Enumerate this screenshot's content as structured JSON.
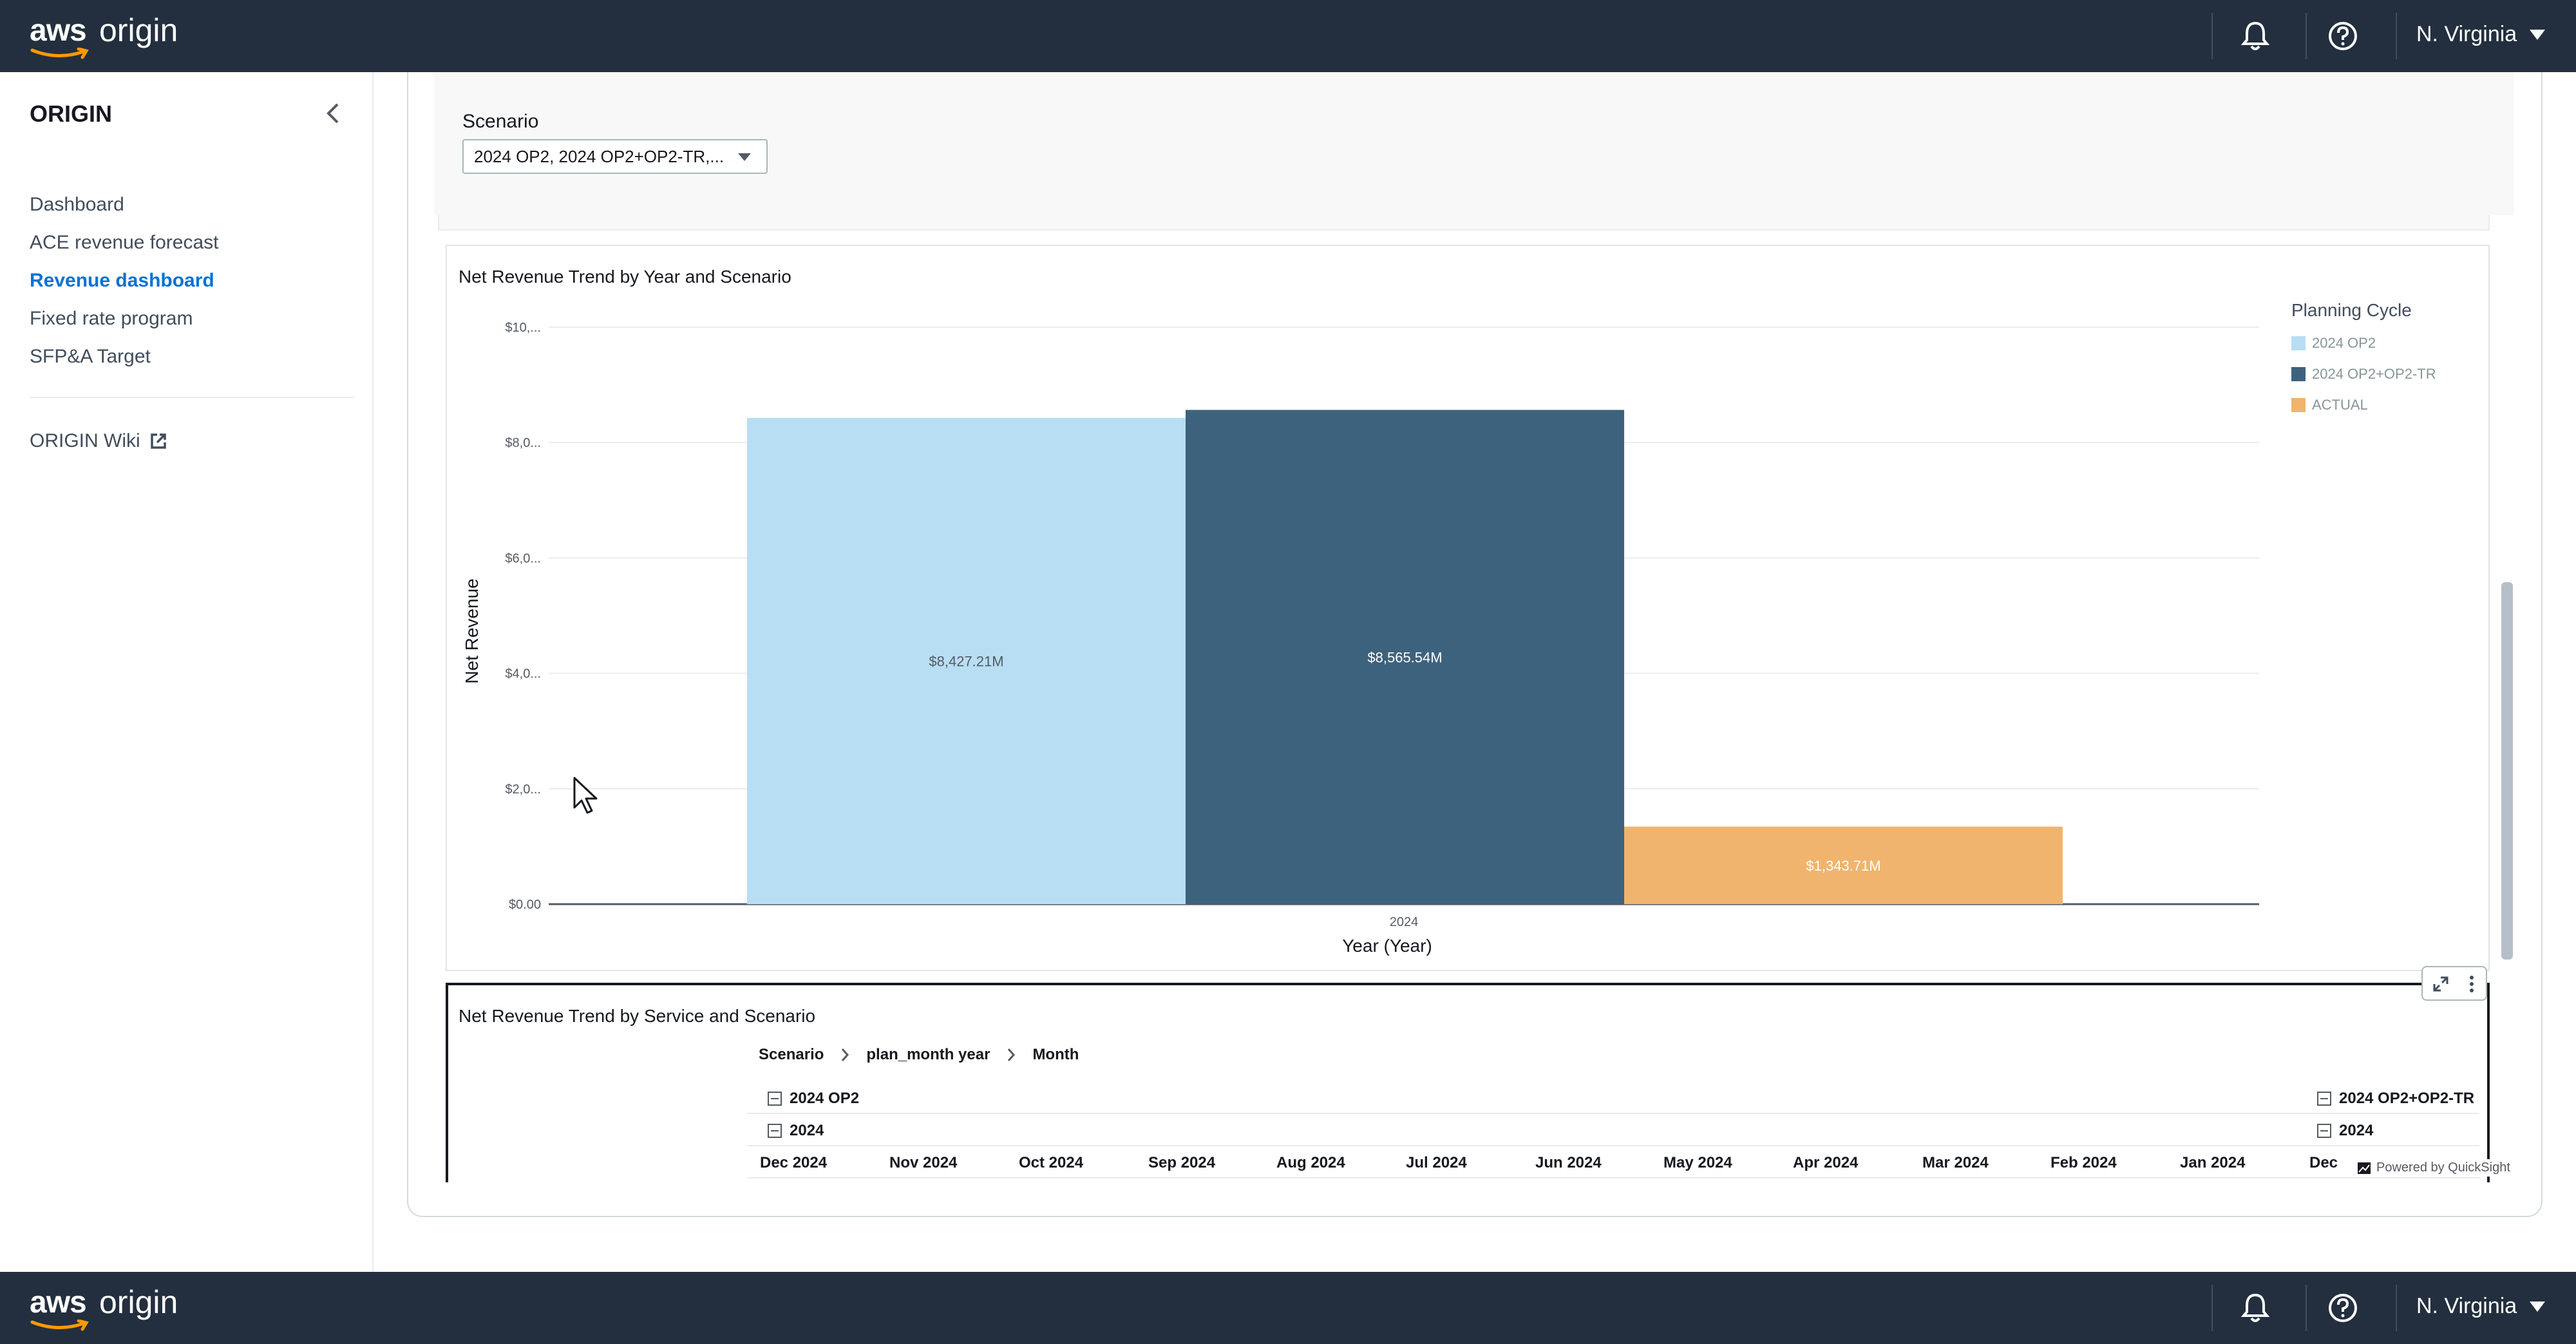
{
  "header": {
    "logo_aws": "aws",
    "logo_origin": "origin",
    "notifications_icon": "bell-icon",
    "help_icon": "help-circle-icon",
    "region": "N. Virginia"
  },
  "sidebar": {
    "title": "ORIGIN",
    "collapse_icon": "chevron-left-icon",
    "items": [
      {
        "label": "Dashboard",
        "active": false
      },
      {
        "label": "ACE revenue forecast",
        "active": false
      },
      {
        "label": "Revenue dashboard",
        "active": true
      },
      {
        "label": "Fixed rate program",
        "active": false
      },
      {
        "label": "SFP&A Target",
        "active": false
      }
    ],
    "wiki_label": "ORIGIN Wiki",
    "wiki_icon": "external-link-icon"
  },
  "controls": {
    "scenario_label": "Scenario",
    "scenario_value": "2024 OP2, 2024 OP2+OP2-TR,..."
  },
  "chart1": {
    "title": "Net Revenue Trend by Year and Scenario",
    "legend_title": "Planning Cycle",
    "colors": {
      "2024 OP2": "#b8def3",
      "2024 OP2+OP2-TR": "#3d627d",
      "ACTUAL": "#f0b46e"
    }
  },
  "chart_data": {
    "type": "bar",
    "title": "Net Revenue Trend by Year and Scenario",
    "xlabel": "Year (Year)",
    "ylabel": "Net Revenue",
    "categories": [
      "2024"
    ],
    "y_tick_labels": [
      "$0.00",
      "$2,0...",
      "$4,0...",
      "$6,0...",
      "$8,0...",
      "$10,..."
    ],
    "ylim": [
      0,
      10000
    ],
    "grid": true,
    "legend_placement": "right",
    "series": [
      {
        "name": "2024 OP2",
        "values": [
          8427.21
        ],
        "label": "$8,427.21M"
      },
      {
        "name": "2024 OP2+OP2-TR",
        "values": [
          8565.54
        ],
        "label": "$8,565.54M"
      },
      {
        "name": "ACTUAL",
        "values": [
          1343.71
        ],
        "label": "$1,343.71M"
      }
    ]
  },
  "chart2": {
    "title": "Net Revenue Trend by Service and Scenario",
    "expand_icon": "expand-icon",
    "menu_icon": "more-vertical-icon",
    "breadcrumbs": [
      "Scenario",
      "plan_month year",
      "Month"
    ],
    "group_left": {
      "scenario": "2024 OP2",
      "year": "2024"
    },
    "group_right": {
      "scenario": "2024 OP2+OP2-TR",
      "year": "2024"
    },
    "months": [
      "Dec 2024",
      "Nov 2024",
      "Oct 2024",
      "Sep 2024",
      "Aug 2024",
      "Jul 2024",
      "Jun 2024",
      "May 2024",
      "Apr 2024",
      "Mar 2024",
      "Feb 2024",
      "Jan 2024",
      "Dec"
    ],
    "powered_by": "Powered by QuickSight"
  }
}
